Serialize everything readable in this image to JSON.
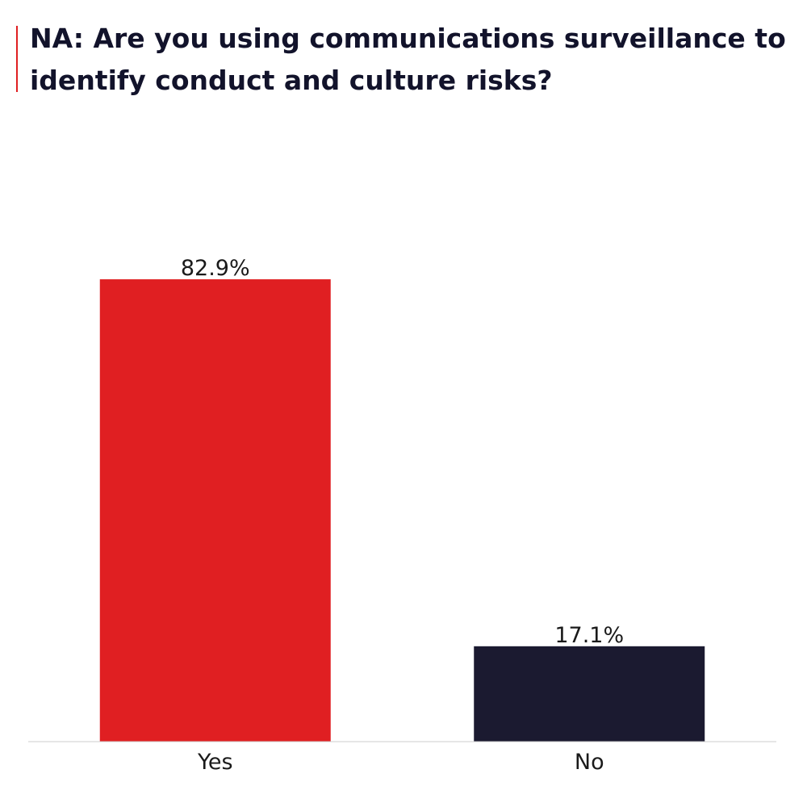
{
  "title": "NA: Are you using communications surveillance to identify conduct and culture risks?",
  "colors": {
    "accent": "#e01f22",
    "yes": "#e01f22",
    "no": "#1b1a30",
    "axis": "#cccccc",
    "title": "#12132b"
  },
  "chart_data": {
    "type": "bar",
    "title": "NA: Are you using communications surveillance to identify conduct and culture risks?",
    "categories": [
      "Yes",
      "No"
    ],
    "values": [
      82.9,
      17.1
    ],
    "value_labels": [
      "82.9%",
      "17.1%"
    ],
    "bar_colors": [
      "#e01f22",
      "#1b1a30"
    ],
    "ylim": [
      0,
      100
    ],
    "xlabel": "",
    "ylabel": "",
    "grid": false,
    "legend": "none"
  }
}
